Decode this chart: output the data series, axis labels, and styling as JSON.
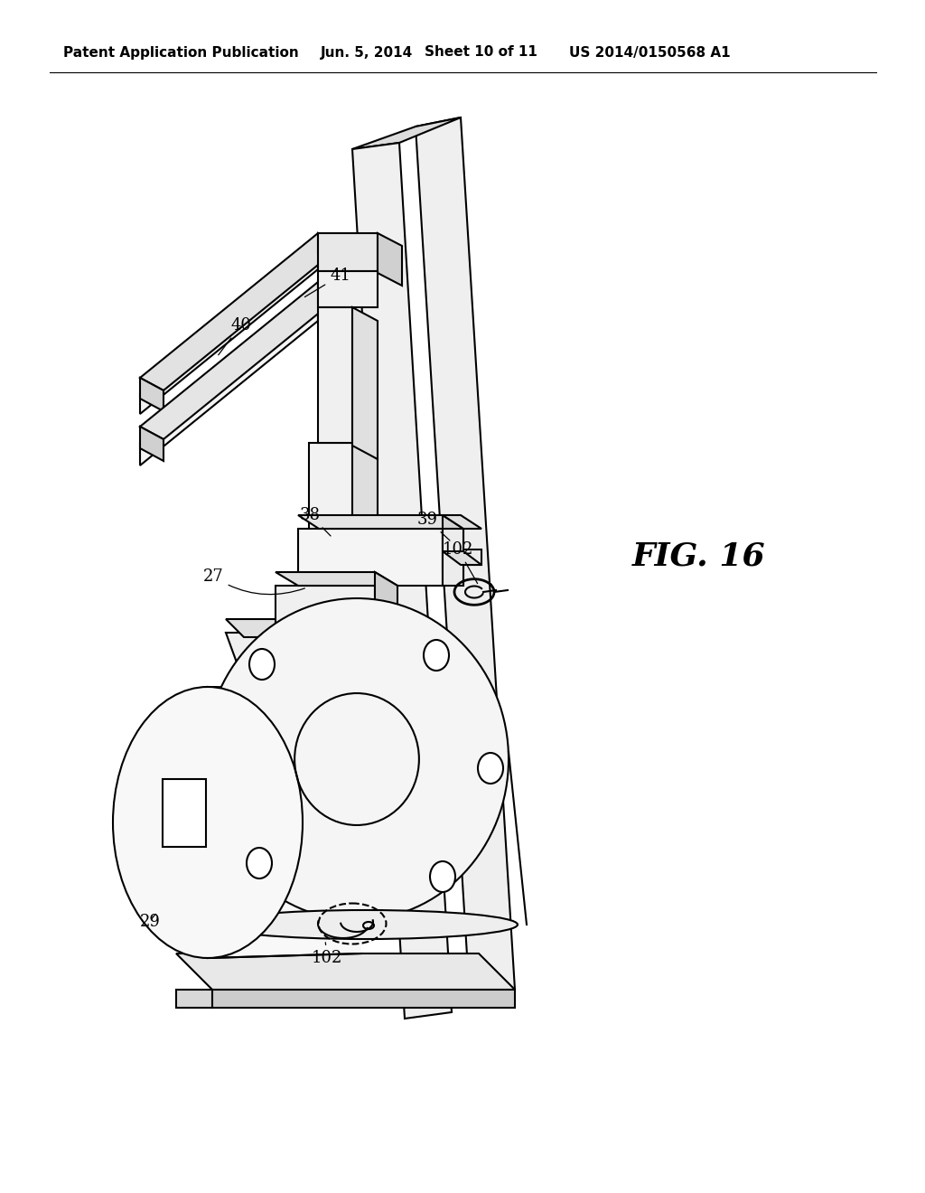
{
  "header_left": "Patent Application Publication",
  "header_mid": "Jun. 5, 2014   Sheet 10 of 11",
  "header_right": "US 2014/0150568 A1",
  "fig_label": "FIG. 16",
  "bg_color": "#ffffff",
  "line_color": "#000000",
  "line_width": 1.5,
  "header_fontsize": 11,
  "label_fontsize": 13,
  "fig_label_fontsize": 26
}
